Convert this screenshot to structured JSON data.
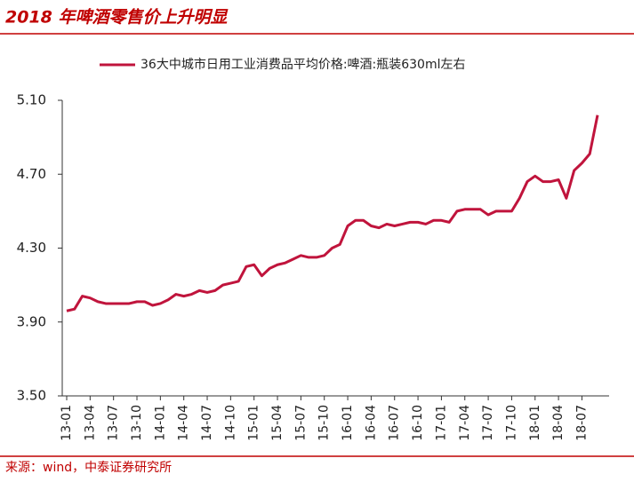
{
  "chart_data": {
    "type": "line",
    "title": "2018 年啤酒零售价上升明显",
    "source": "来源：wind，中泰证券研究所",
    "categories": [
      "13-01",
      null,
      null,
      "13-04",
      null,
      null,
      "13-07",
      null,
      null,
      "13-10",
      null,
      null,
      "14-01",
      null,
      null,
      "14-04",
      null,
      null,
      "14-07",
      null,
      null,
      "14-10",
      null,
      null,
      "15-01",
      null,
      null,
      "15-04",
      null,
      null,
      "15-07",
      null,
      null,
      "15-10",
      null,
      null,
      "16-01",
      null,
      null,
      "16-04",
      null,
      null,
      "16-07",
      null,
      null,
      "16-10",
      null,
      null,
      "17-01",
      null,
      null,
      "17-04",
      null,
      null,
      "17-07",
      null,
      null,
      "17-10",
      null,
      null,
      "18-01",
      null,
      null,
      "18-04",
      null,
      null,
      "18-07",
      null,
      null
    ],
    "series": [
      {
        "name": "36大中城市日用工业消费品平均价格:啤酒:瓶装630ml左右",
        "color": "#c0143c",
        "values": [
          3.96,
          3.97,
          4.04,
          4.03,
          4.01,
          4.0,
          4.0,
          4.0,
          4.0,
          4.01,
          4.01,
          3.99,
          4.0,
          4.02,
          4.05,
          4.04,
          4.05,
          4.07,
          4.06,
          4.07,
          4.1,
          4.11,
          4.12,
          4.2,
          4.21,
          4.15,
          4.19,
          4.21,
          4.22,
          4.24,
          4.26,
          4.25,
          4.25,
          4.26,
          4.3,
          4.32,
          4.42,
          4.45,
          4.45,
          4.42,
          4.41,
          4.43,
          4.42,
          4.43,
          4.44,
          4.44,
          4.43,
          4.45,
          4.45,
          4.44,
          4.5,
          4.51,
          4.51,
          4.51,
          4.48,
          4.5,
          4.5,
          4.5,
          4.57,
          4.66,
          4.69,
          4.66,
          4.66,
          4.67,
          4.57,
          4.72,
          4.76,
          4.81,
          5.02
        ]
      }
    ],
    "ylim": [
      3.5,
      5.1
    ],
    "yticks": [
      {
        "value": 3.5,
        "label": "3.50"
      },
      {
        "value": 3.9,
        "label": "3.90"
      },
      {
        "value": 4.3,
        "label": "4.30"
      },
      {
        "value": 4.7,
        "label": "4.70"
      },
      {
        "value": 5.1,
        "label": "5.10"
      }
    ],
    "grid": false
  }
}
